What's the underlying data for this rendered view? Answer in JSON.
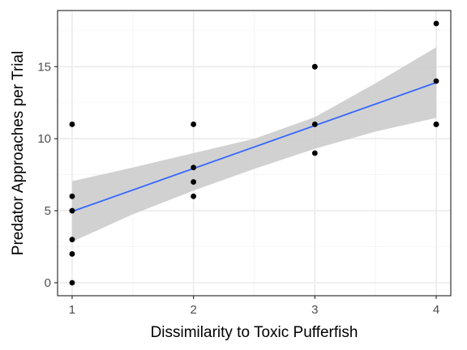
{
  "chart_data": {
    "type": "scatter",
    "title": "",
    "xlabel": "Dissimilarity to Toxic Pufferfish",
    "ylabel": "Predator Approaches per Trial",
    "xlim": [
      0.88,
      4.12
    ],
    "ylim": [
      -0.9,
      18.9
    ],
    "x_ticks": [
      1,
      2,
      3,
      4
    ],
    "y_ticks": [
      0,
      5,
      10,
      15
    ],
    "grid": true,
    "points": [
      {
        "x": 1,
        "y": 0
      },
      {
        "x": 1,
        "y": 2
      },
      {
        "x": 1,
        "y": 3
      },
      {
        "x": 1,
        "y": 5
      },
      {
        "x": 1,
        "y": 5
      },
      {
        "x": 1,
        "y": 6
      },
      {
        "x": 1,
        "y": 11
      },
      {
        "x": 2,
        "y": 6
      },
      {
        "x": 2,
        "y": 7
      },
      {
        "x": 2,
        "y": 8
      },
      {
        "x": 2,
        "y": 11
      },
      {
        "x": 3,
        "y": 9
      },
      {
        "x": 3,
        "y": 11
      },
      {
        "x": 3,
        "y": 15
      },
      {
        "x": 3,
        "y": 15
      },
      {
        "x": 4,
        "y": 11
      },
      {
        "x": 4,
        "y": 11
      },
      {
        "x": 4,
        "y": 14
      },
      {
        "x": 4,
        "y": 18
      }
    ],
    "fit_line": {
      "x": [
        1,
        4
      ],
      "y": [
        4.95,
        13.9
      ]
    },
    "confidence_band": {
      "x": [
        1,
        1.5,
        2,
        2.5,
        3,
        3.5,
        4
      ],
      "lower": [
        2.85,
        4.75,
        6.4,
        7.9,
        9.3,
        10.5,
        11.45
      ],
      "upper": [
        7.05,
        8.0,
        9.0,
        10.0,
        11.5,
        13.85,
        16.35
      ]
    },
    "colors": {
      "points": "#000000",
      "fit_line": "#3366ff",
      "band": "#cccccc",
      "grid_major": "#ebebeb",
      "grid_minor": "#f5f5f5",
      "panel_border": "#333333"
    }
  }
}
